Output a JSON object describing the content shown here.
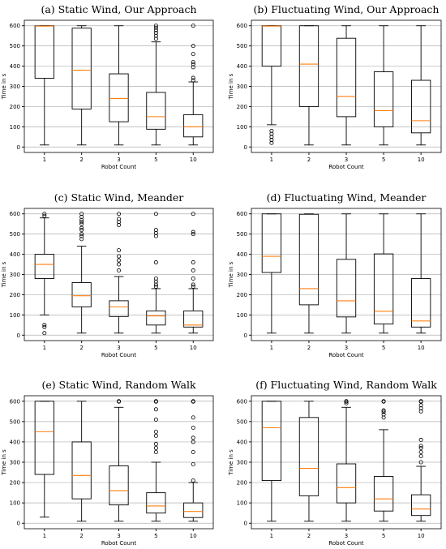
{
  "chart_data": [
    {
      "type": "box",
      "title": "(a) Static Wind, Our Approach",
      "xlabel": "Robot Count",
      "ylabel": "Time in s",
      "ylim": [
        0,
        600
      ],
      "yticks": [
        0,
        100,
        200,
        300,
        400,
        500,
        600
      ],
      "grid": "horizontal",
      "categories": [
        "1",
        "2",
        "3",
        "5",
        "10"
      ],
      "boxes": [
        {
          "whislo": 10,
          "q1": 340,
          "med": 598,
          "q3": 600,
          "whishi": 600,
          "fliers": []
        },
        {
          "whislo": 10,
          "q1": 188,
          "med": 380,
          "q3": 588,
          "whishi": 600,
          "fliers": []
        },
        {
          "whislo": 10,
          "q1": 125,
          "med": 240,
          "q3": 362,
          "whishi": 600,
          "fliers": []
        },
        {
          "whislo": 10,
          "q1": 88,
          "med": 150,
          "q3": 270,
          "whishi": 520,
          "fliers": [
            535,
            550,
            565,
            578,
            590,
            600
          ]
        },
        {
          "whislo": 10,
          "q1": 50,
          "med": 100,
          "q3": 160,
          "whishi": 322,
          "fliers": [
            330,
            342,
            395,
            410,
            420,
            460,
            500,
            600
          ]
        }
      ]
    },
    {
      "type": "box",
      "title": "(b) Fluctuating Wind, Our Approach",
      "xlabel": "Robot Count",
      "ylabel": "Time in s",
      "ylim": [
        0,
        600
      ],
      "yticks": [
        0,
        100,
        200,
        300,
        400,
        500,
        600
      ],
      "grid": "horizontal",
      "categories": [
        "1",
        "2",
        "3",
        "5",
        "10"
      ],
      "boxes": [
        {
          "whislo": 110,
          "q1": 400,
          "med": 598,
          "q3": 600,
          "whishi": 600,
          "fliers": [
            20,
            35,
            50,
            65,
            80
          ]
        },
        {
          "whislo": 10,
          "q1": 200,
          "med": 410,
          "q3": 600,
          "whishi": 600,
          "fliers": []
        },
        {
          "whislo": 10,
          "q1": 150,
          "med": 250,
          "q3": 538,
          "whishi": 600,
          "fliers": []
        },
        {
          "whislo": 10,
          "q1": 100,
          "med": 180,
          "q3": 372,
          "whishi": 600,
          "fliers": []
        },
        {
          "whislo": 10,
          "q1": 70,
          "med": 130,
          "q3": 330,
          "whishi": 600,
          "fliers": []
        }
      ]
    },
    {
      "type": "box",
      "title": "(c) Static Wind, Meander",
      "xlabel": "Robot Count",
      "ylabel": "Time in s",
      "ylim": [
        0,
        600
      ],
      "yticks": [
        0,
        100,
        200,
        300,
        400,
        500,
        600
      ],
      "grid": "horizontal",
      "categories": [
        "1",
        "2",
        "3",
        "5",
        "10"
      ],
      "boxes": [
        {
          "whislo": 100,
          "q1": 280,
          "med": 350,
          "q3": 400,
          "whishi": 580,
          "fliers": [
            10,
            40,
            50,
            590,
            600
          ]
        },
        {
          "whislo": 10,
          "q1": 140,
          "med": 195,
          "q3": 260,
          "whishi": 440,
          "fliers": [
            475,
            490,
            500,
            520,
            530,
            550,
            560,
            570,
            585,
            600
          ]
        },
        {
          "whislo": 10,
          "q1": 92,
          "med": 140,
          "q3": 170,
          "whishi": 290,
          "fliers": [
            320,
            350,
            370,
            390,
            420,
            545,
            560,
            575,
            600
          ]
        },
        {
          "whislo": 10,
          "q1": 50,
          "med": 95,
          "q3": 120,
          "whishi": 230,
          "fliers": [
            240,
            250,
            265,
            280,
            360,
            490,
            505,
            520,
            600
          ]
        },
        {
          "whislo": 10,
          "q1": 40,
          "med": 50,
          "q3": 120,
          "whishi": 230,
          "fliers": [
            240,
            250,
            280,
            320,
            360,
            500,
            510,
            600
          ]
        }
      ]
    },
    {
      "type": "box",
      "title": "(d) Fluctuating Wind, Meander",
      "xlabel": "Robot Count",
      "ylabel": "Time in s",
      "ylim": [
        0,
        600
      ],
      "yticks": [
        0,
        100,
        200,
        300,
        400,
        500,
        600
      ],
      "grid": "horizontal",
      "categories": [
        "1",
        "2",
        "3",
        "5",
        "10"
      ],
      "boxes": [
        {
          "whislo": 10,
          "q1": 310,
          "med": 390,
          "q3": 600,
          "whishi": 600,
          "fliers": []
        },
        {
          "whislo": 10,
          "q1": 150,
          "med": 230,
          "q3": 598,
          "whishi": 600,
          "fliers": []
        },
        {
          "whislo": 10,
          "q1": 90,
          "med": 170,
          "q3": 375,
          "whishi": 600,
          "fliers": []
        },
        {
          "whislo": 10,
          "q1": 55,
          "med": 118,
          "q3": 402,
          "whishi": 600,
          "fliers": []
        },
        {
          "whislo": 10,
          "q1": 40,
          "med": 70,
          "q3": 280,
          "whishi": 600,
          "fliers": []
        }
      ]
    },
    {
      "type": "box",
      "title": "(e) Static Wind, Random Walk",
      "xlabel": "Robot Count",
      "ylabel": "Time in s",
      "ylim": [
        0,
        600
      ],
      "yticks": [
        0,
        100,
        200,
        300,
        400,
        500,
        600
      ],
      "grid": "horizontal",
      "categories": [
        "1",
        "2",
        "3",
        "5",
        "10"
      ],
      "boxes": [
        {
          "whislo": 30,
          "q1": 240,
          "med": 450,
          "q3": 600,
          "whishi": 600,
          "fliers": []
        },
        {
          "whislo": 10,
          "q1": 120,
          "med": 235,
          "q3": 400,
          "whishi": 600,
          "fliers": []
        },
        {
          "whislo": 10,
          "q1": 90,
          "med": 160,
          "q3": 282,
          "whishi": 570,
          "fliers": [
            598,
            600
          ]
        },
        {
          "whislo": 10,
          "q1": 50,
          "med": 85,
          "q3": 150,
          "whishi": 300,
          "fliers": [
            350,
            370,
            390,
            430,
            450,
            510,
            560,
            598,
            600
          ]
        },
        {
          "whislo": 10,
          "q1": 28,
          "med": 58,
          "q3": 100,
          "whishi": 200,
          "fliers": [
            210,
            290,
            350,
            400,
            420,
            470,
            520,
            598,
            600
          ]
        }
      ]
    },
    {
      "type": "box",
      "title": "(f) Fluctuating Wind, Random Walk",
      "xlabel": "Robot Count",
      "ylabel": "Time in s",
      "ylim": [
        0,
        600
      ],
      "yticks": [
        0,
        100,
        200,
        300,
        400,
        500,
        600
      ],
      "grid": "horizontal",
      "categories": [
        "1",
        "2",
        "3",
        "5",
        "10"
      ],
      "boxes": [
        {
          "whislo": 10,
          "q1": 210,
          "med": 470,
          "q3": 600,
          "whishi": 600,
          "fliers": []
        },
        {
          "whislo": 10,
          "q1": 135,
          "med": 270,
          "q3": 520,
          "whishi": 600,
          "fliers": []
        },
        {
          "whislo": 10,
          "q1": 100,
          "med": 175,
          "q3": 292,
          "whishi": 570,
          "fliers": [
            590,
            598,
            600
          ]
        },
        {
          "whislo": 10,
          "q1": 60,
          "med": 120,
          "q3": 230,
          "whishi": 460,
          "fliers": [
            520,
            535,
            548,
            555,
            598,
            600
          ]
        },
        {
          "whislo": 10,
          "q1": 38,
          "med": 70,
          "q3": 140,
          "whishi": 280,
          "fliers": [
            300,
            330,
            350,
            370,
            380,
            410,
            550,
            565,
            580,
            598,
            600
          ]
        }
      ]
    }
  ]
}
